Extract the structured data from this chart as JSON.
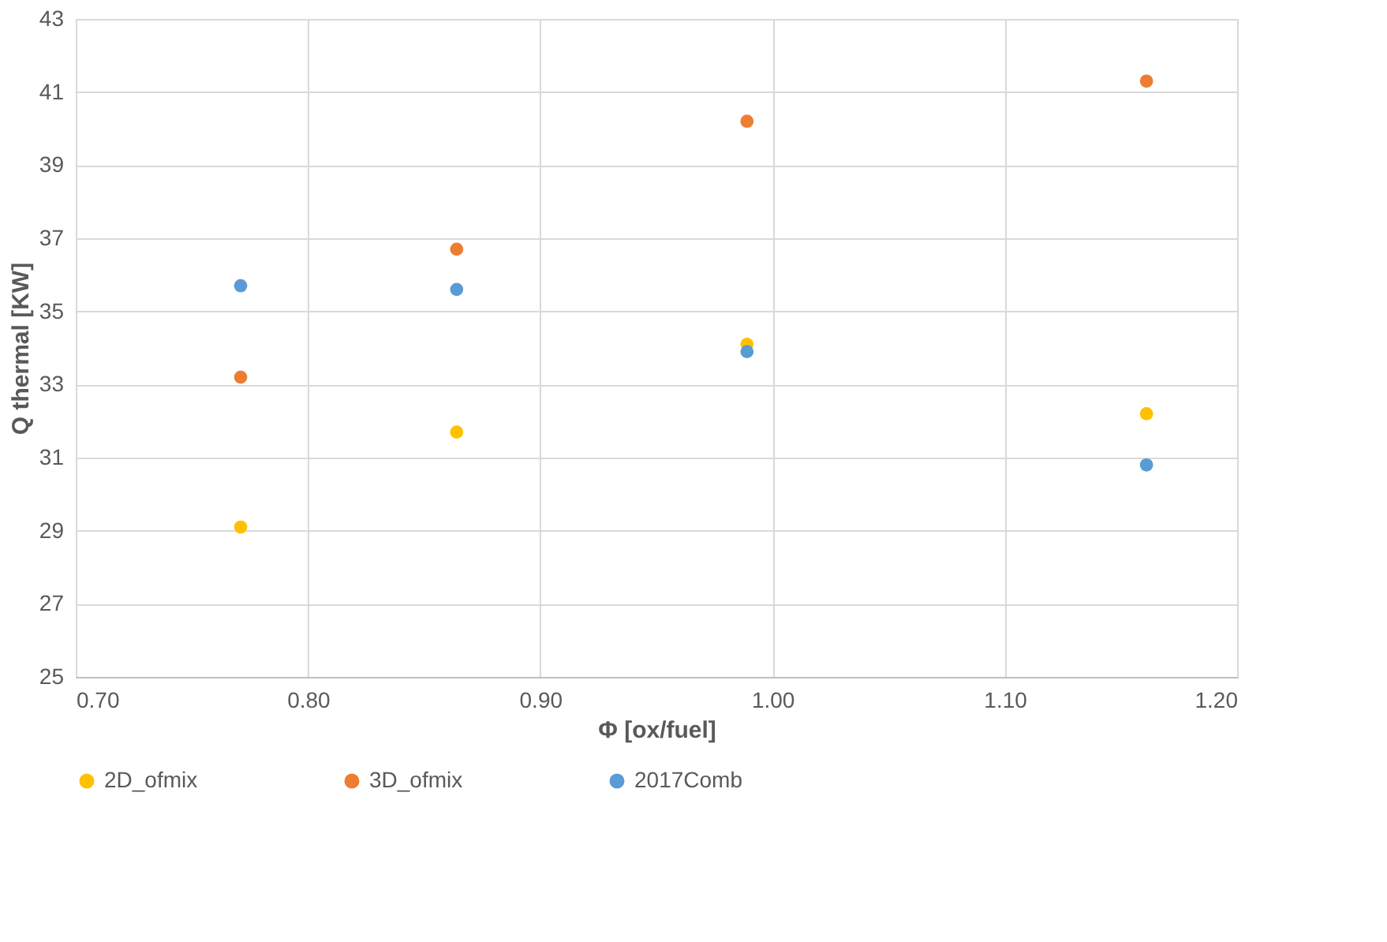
{
  "chart_data": {
    "type": "scatter",
    "xlabel": "Φ [ox/fuel]",
    "ylabel": "Q thermal [KW]",
    "x": [
      0.771,
      0.864,
      0.989,
      1.161
    ],
    "series": [
      {
        "name": "2D_ofmix",
        "color": "#ffc000",
        "values": [
          29.1,
          31.7,
          34.1,
          32.2
        ]
      },
      {
        "name": "3D_ofmix",
        "color": "#ed7d31",
        "values": [
          33.2,
          36.7,
          40.2,
          41.3
        ]
      },
      {
        "name": "2017Comb",
        "color": "#5b9bd5",
        "values": [
          35.7,
          35.6,
          33.9,
          30.8
        ]
      }
    ],
    "xlim": [
      0.7,
      1.2
    ],
    "xticks": [
      {
        "value": 0.7,
        "label": "0.70"
      },
      {
        "value": 0.8,
        "label": "0.80"
      },
      {
        "value": 0.9,
        "label": "0.90"
      },
      {
        "value": 1.0,
        "label": "1.00"
      },
      {
        "value": 1.1,
        "label": "1.10"
      },
      {
        "value": 1.2,
        "label": "1.20"
      }
    ],
    "ylim": [
      25,
      43
    ],
    "yticks": [
      25,
      27,
      29,
      31,
      33,
      35,
      37,
      39,
      41,
      43
    ],
    "grid": true,
    "legend": "bottom",
    "marker": "circle"
  }
}
